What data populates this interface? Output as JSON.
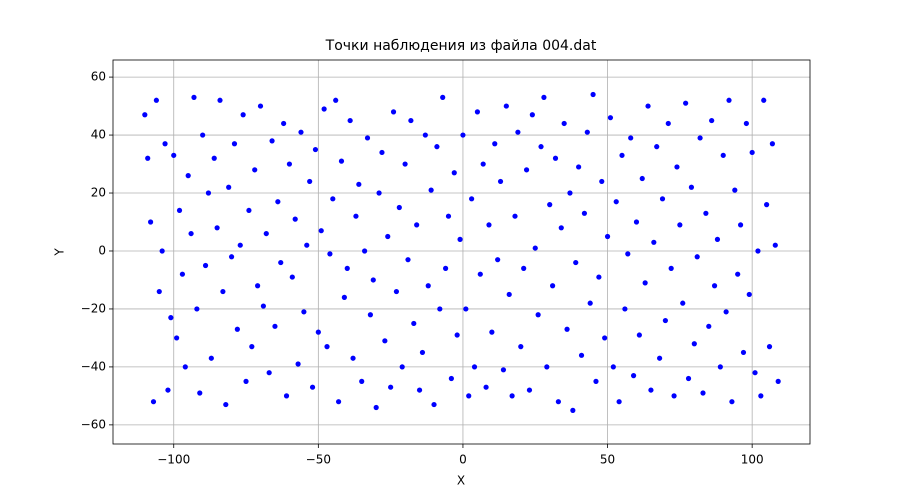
{
  "chart_data": {
    "type": "scatter",
    "title": "Точки наблюдения из файла 004.dat",
    "x_label": "X",
    "y_label": "Y",
    "color": "#0000ff",
    "grid": true,
    "xlim": [
      -121,
      120
    ],
    "ylim": [
      -66.6,
      65.9
    ],
    "xticks": [
      {
        "value": -100,
        "label": "−100"
      },
      {
        "value": -50,
        "label": "−50"
      },
      0,
      50,
      100
    ],
    "yticks": [
      {
        "value": -60,
        "label": "−60"
      },
      {
        "value": -40,
        "label": "−40"
      },
      {
        "value": -20,
        "label": "−20"
      },
      0,
      20,
      40,
      60
    ],
    "x": [
      -110,
      -109,
      -108,
      -107,
      -106,
      -105,
      -104,
      -103,
      -102,
      -101,
      -100,
      -99,
      -98,
      -97,
      -96,
      -95,
      -94,
      -93,
      -92,
      -91,
      -90,
      -89,
      -88,
      -87,
      -86,
      -85,
      -84,
      -83,
      -82,
      -81,
      -80,
      -79,
      -78,
      -77,
      -76,
      -75,
      -74,
      -73,
      -72,
      -71,
      -70,
      -69,
      -68,
      -67,
      -66,
      -65,
      -64,
      -63,
      -62,
      -61,
      -60,
      -59,
      -58,
      -57,
      -56,
      -55,
      -54,
      -53,
      -52,
      -51,
      -50,
      -49,
      -48,
      -47,
      -46,
      -45,
      -44,
      -43,
      -42,
      -41,
      -40,
      -39,
      -38,
      -37,
      -36,
      -35,
      -34,
      -33,
      -32,
      -31,
      -30,
      -29,
      -28,
      -27,
      -26,
      -25,
      -24,
      -23,
      -22,
      -21,
      -20,
      -19,
      -18,
      -17,
      -16,
      -15,
      -14,
      -13,
      -12,
      -11,
      -10,
      -9,
      -8,
      -7,
      -6,
      -5,
      -4,
      -3,
      -2,
      -1,
      0,
      1,
      2,
      3,
      4,
      5,
      6,
      7,
      8,
      9,
      10,
      11,
      12,
      13,
      14,
      15,
      16,
      17,
      18,
      19,
      20,
      21,
      22,
      23,
      24,
      25,
      26,
      27,
      28,
      29,
      30,
      31,
      32,
      33,
      34,
      35,
      36,
      37,
      38,
      39,
      40,
      41,
      42,
      43,
      44,
      45,
      46,
      47,
      48,
      49,
      50,
      51,
      52,
      53,
      54,
      55,
      56,
      57,
      58,
      59,
      60,
      61,
      62,
      63,
      64,
      65,
      66,
      67,
      68,
      69,
      70,
      71,
      72,
      73,
      74,
      75,
      76,
      77,
      78,
      79,
      80,
      81,
      82,
      83,
      84,
      85,
      86,
      87,
      88,
      89,
      90,
      91,
      92,
      93,
      94,
      95,
      96,
      97,
      98,
      99,
      100,
      101,
      102,
      103,
      104,
      105,
      106,
      107,
      108,
      109
    ],
    "y": [
      47,
      32,
      10,
      -52,
      52,
      -14,
      0,
      37,
      -48,
      -23,
      33,
      -30,
      14,
      -8,
      -40,
      26,
      6,
      53,
      -20,
      -49,
      40,
      -5,
      20,
      -37,
      32,
      8,
      52,
      -14,
      -53,
      22,
      -2,
      37,
      -27,
      2,
      47,
      -45,
      14,
      -33,
      28,
      -12,
      50,
      -19,
      6,
      -42,
      38,
      -26,
      17,
      -4,
      44,
      -50,
      30,
      -9,
      11,
      -39,
      41,
      -21,
      2,
      24,
      -47,
      35,
      -28,
      7,
      49,
      -33,
      -1,
      18,
      52,
      -52,
      31,
      -16,
      -6,
      45,
      -37,
      12,
      23,
      -45,
      0,
      39,
      -22,
      -10,
      -54,
      20,
      34,
      -31,
      5,
      -47,
      48,
      -14,
      15,
      -40,
      30,
      -3,
      45,
      -25,
      9,
      -48,
      -35,
      40,
      -12,
      21,
      -53,
      36,
      -20,
      53,
      -6,
      12,
      -44,
      27,
      -29,
      4,
      40,
      -20,
      -50,
      18,
      -40,
      48,
      -8,
      30,
      -47,
      9,
      -28,
      37,
      -3,
      24,
      -41,
      50,
      -15,
      -50,
      12,
      41,
      -33,
      -6,
      28,
      -48,
      47,
      1,
      -22,
      36,
      53,
      -40,
      16,
      -12,
      32,
      -52,
      8,
      44,
      -27,
      20,
      -55,
      -4,
      29,
      -36,
      13,
      41,
      -18,
      54,
      -45,
      -9,
      24,
      -30,
      5,
      46,
      -40,
      17,
      -52,
      33,
      -20,
      -1,
      39,
      -43,
      10,
      -29,
      25,
      -11,
      50,
      -48,
      3,
      36,
      -37,
      18,
      -24,
      44,
      -6,
      -50,
      29,
      9,
      -18,
      51,
      -44,
      22,
      -32,
      -2,
      39,
      -49,
      13,
      -26,
      45,
      -12,
      4,
      -40,
      33,
      -21,
      52,
      -52,
      21,
      -8,
      9,
      -35,
      44,
      -15,
      34,
      -42,
      0,
      -50,
      52,
      16,
      -33,
      37,
      2,
      -45
    ]
  }
}
